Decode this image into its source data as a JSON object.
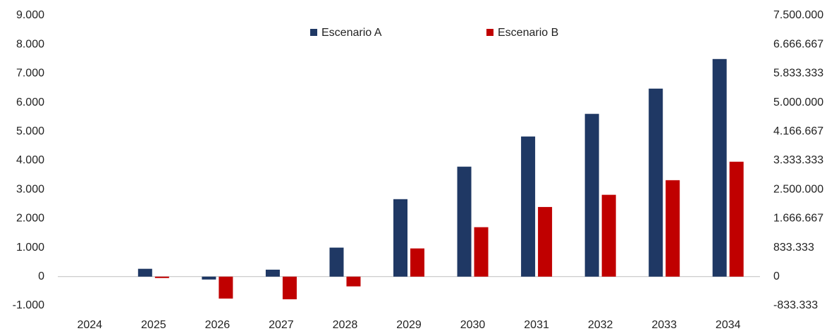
{
  "chart_data": {
    "type": "bar",
    "categories": [
      "2024",
      "2025",
      "2026",
      "2027",
      "2028",
      "2029",
      "2030",
      "2031",
      "2032",
      "2033",
      "2034"
    ],
    "series": [
      {
        "name": "Escenario A",
        "color": "#1f3864",
        "values": [
          0,
          270,
          -100,
          240,
          1000,
          2670,
          3790,
          4830,
          5610,
          6480,
          7500
        ]
      },
      {
        "name": "Escenario B",
        "color": "#c00000",
        "axis": "y2",
        "values": [
          0,
          -40000,
          -630000,
          -650000,
          -280000,
          810000,
          1420000,
          2000000,
          2350000,
          2770000,
          3300000
        ]
      }
    ],
    "ylim": [
      -1000,
      9000
    ],
    "yticks": [
      {
        "value": -1000,
        "label": "-1.000"
      },
      0,
      {
        "value": 1000,
        "label": "1.000"
      },
      {
        "value": 2000,
        "label": "2.000"
      },
      {
        "value": 3000,
        "label": "3.000"
      },
      {
        "value": 4000,
        "label": "4.000"
      },
      {
        "value": 5000,
        "label": "5.000"
      },
      {
        "value": 6000,
        "label": "6.000"
      },
      {
        "value": 7000,
        "label": "7.000"
      },
      {
        "value": 8000,
        "label": "8.000"
      },
      {
        "value": 9000,
        "label": "9.000"
      }
    ],
    "y2lim": [
      -833333,
      7500000
    ],
    "y2ticks": [
      {
        "value": -833333,
        "label": "-833.333"
      },
      0,
      {
        "value": 833333,
        "label": "833.333"
      },
      {
        "value": 1666667,
        "label": "1.666.667"
      },
      {
        "value": 2500000,
        "label": "2.500.000"
      },
      {
        "value": 3333333,
        "label": "3.333.333"
      },
      {
        "value": 4166667,
        "label": "4.166.667"
      },
      {
        "value": 5000000,
        "label": "5.000.000"
      },
      {
        "value": 5833333,
        "label": "5.833.333"
      },
      {
        "value": 6666667,
        "label": "6.666.667"
      },
      {
        "value": 7500000,
        "label": "7.500.000"
      }
    ],
    "legend": "top",
    "grid": false
  }
}
